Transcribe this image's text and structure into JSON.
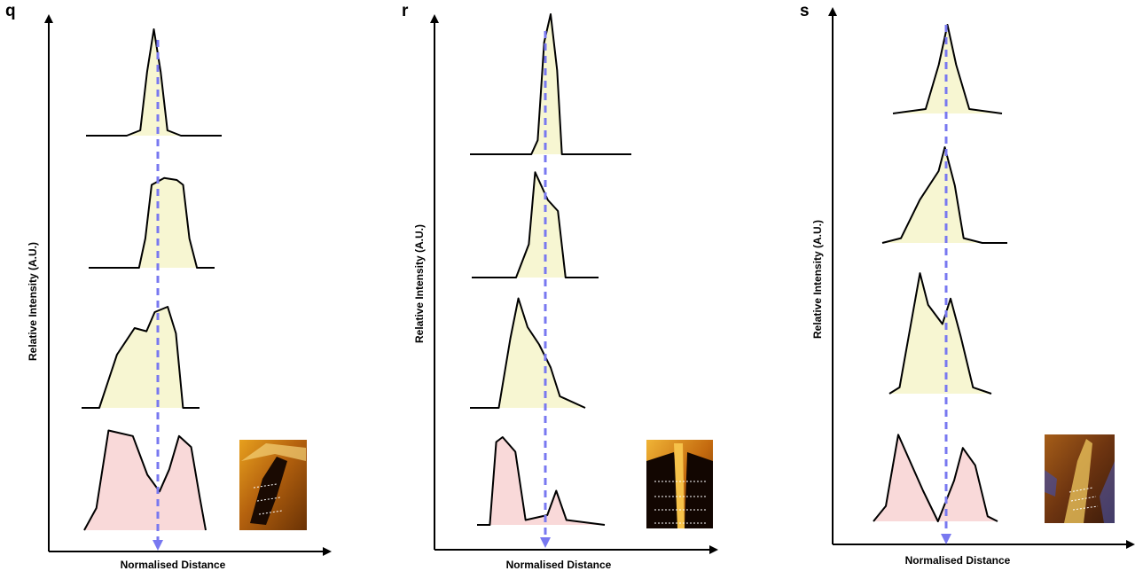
{
  "chart_data": [
    {
      "type": "line",
      "panel": "q",
      "xlabel": "Normalised Distance",
      "ylabel": "Relative Intensity (A.U.)",
      "grid": false,
      "stacked_profiles": 4,
      "profile_fills": [
        "#f7f6d2",
        "#f7f6d2",
        "#f7f6d2",
        "#f9d9d9"
      ],
      "marker_color": "#7878f0",
      "profiles": [
        {
          "x": [
            0,
            0.3,
            0.4,
            0.45,
            0.5,
            0.55,
            0.6,
            0.7,
            1.0
          ],
          "y": [
            0,
            0,
            0.05,
            0.6,
            1.0,
            0.6,
            0.05,
            0,
            0
          ]
        },
        {
          "x": [
            0,
            0.4,
            0.45,
            0.5,
            0.6,
            0.7,
            0.75,
            0.8,
            0.86,
            1.0
          ],
          "y": [
            0,
            0,
            0.3,
            0.85,
            0.92,
            0.9,
            0.85,
            0.3,
            0,
            0
          ]
        },
        {
          "x": [
            0,
            0.15,
            0.3,
            0.45,
            0.55,
            0.62,
            0.73,
            0.8,
            0.86,
            1.0
          ],
          "y": [
            0,
            0,
            0.5,
            0.75,
            0.72,
            0.9,
            0.95,
            0.7,
            0,
            0
          ]
        },
        {
          "x": [
            0,
            0.1,
            0.2,
            0.4,
            0.52,
            0.62,
            0.7,
            0.78,
            0.88,
            0.95,
            1.0
          ],
          "y": [
            0,
            0.2,
            0.9,
            0.85,
            0.5,
            0.35,
            0.55,
            0.85,
            0.75,
            0.3,
            0
          ]
        }
      ]
    },
    {
      "type": "line",
      "panel": "r",
      "xlabel": "Normalised Distance",
      "ylabel": "Relative Intensity (A.U.)",
      "grid": false,
      "stacked_profiles": 4,
      "profile_fills": [
        "#f7f6d2",
        "#f7f6d2",
        "#f7f6d2",
        "#f9d9d9"
      ],
      "marker_color": "#7878f0",
      "profiles": [
        {
          "x": [
            0,
            0.38,
            0.42,
            0.46,
            0.5,
            0.54,
            0.57,
            1.0
          ],
          "y": [
            0,
            0,
            0.1,
            0.8,
            1.0,
            0.6,
            0,
            0
          ]
        },
        {
          "x": [
            0,
            0.35,
            0.45,
            0.5,
            0.6,
            0.68,
            0.74,
            1.0
          ],
          "y": [
            0,
            0,
            0.3,
            0.95,
            0.7,
            0.6,
            0,
            0
          ]
        },
        {
          "x": [
            0,
            0.25,
            0.35,
            0.42,
            0.5,
            0.6,
            0.7,
            0.78,
            1.0
          ],
          "y": [
            0,
            0,
            0.6,
            0.95,
            0.7,
            0.55,
            0.35,
            0.1,
            0
          ]
        },
        {
          "x": [
            0,
            0.1,
            0.15,
            0.2,
            0.3,
            0.38,
            0.55,
            0.62,
            0.7,
            1.0
          ],
          "y": [
            0,
            0,
            0.85,
            0.9,
            0.75,
            0.05,
            0.1,
            0.35,
            0.05,
            0
          ]
        }
      ]
    },
    {
      "type": "line",
      "panel": "s",
      "xlabel": "Normalised Distance",
      "ylabel": "Relative Intensity (A.U.)",
      "grid": false,
      "stacked_profiles": 4,
      "profile_fills": [
        "#f7f6d2",
        "#f7f6d2",
        "#f7f6d2",
        "#f9d9d9"
      ],
      "marker_color": "#7878f0",
      "profiles": [
        {
          "x": [
            0,
            0.3,
            0.42,
            0.5,
            0.58,
            0.7,
            1.0
          ],
          "y": [
            0,
            0.05,
            0.55,
            1.0,
            0.55,
            0.05,
            0
          ]
        },
        {
          "x": [
            0,
            0.15,
            0.3,
            0.45,
            0.5,
            0.58,
            0.65,
            0.8,
            1.0
          ],
          "y": [
            0,
            0.05,
            0.45,
            0.75,
            1.0,
            0.6,
            0.05,
            0,
            0
          ]
        },
        {
          "x": [
            0,
            0.1,
            0.2,
            0.3,
            0.38,
            0.52,
            0.6,
            0.7,
            0.82,
            1.0
          ],
          "y": [
            0,
            0.05,
            0.5,
            0.95,
            0.7,
            0.55,
            0.75,
            0.45,
            0.05,
            0
          ]
        },
        {
          "x": [
            0,
            0.1,
            0.2,
            0.4,
            0.52,
            0.65,
            0.72,
            0.82,
            0.92,
            1.0
          ],
          "y": [
            0,
            0.15,
            0.85,
            0.3,
            0.0,
            0.4,
            0.72,
            0.55,
            0.05,
            0
          ]
        }
      ]
    }
  ],
  "panels": [
    {
      "label": "q",
      "ylabel": "Relative Intensity (A.U.)",
      "xlabel": "Normalised Distance"
    },
    {
      "label": "r",
      "ylabel": "Relative Intensity (A.U.)",
      "xlabel": "Normalised Distance"
    },
    {
      "label": "s",
      "ylabel": "Relative Intensity (A.U.)",
      "xlabel": "Normalised Distance"
    }
  ]
}
